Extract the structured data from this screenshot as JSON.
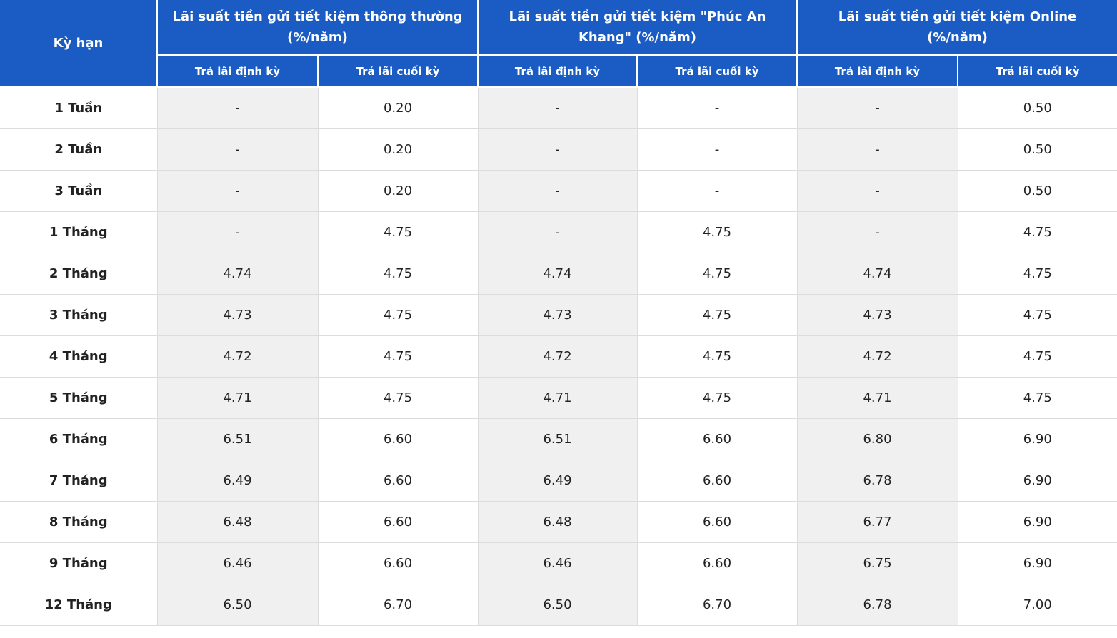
{
  "table": {
    "header": {
      "term": "Kỳ hạn",
      "groups": [
        {
          "title": "Lãi suất tiền gửi tiết kiệm thông thường (%/năm)",
          "subheaders": [
            "Trả lãi định kỳ",
            "Trả lãi cuối kỳ"
          ]
        },
        {
          "title": "Lãi suất tiền gửi tiết kiệm \"Phúc An Khang\" (%/năm)",
          "subheaders": [
            "Trả lãi định kỳ",
            "Trả lãi cuối kỳ"
          ]
        },
        {
          "title": "Lãi suất tiền gửi tiết kiệm Online (%/năm)",
          "subheaders": [
            "Trả lãi định kỳ",
            "Trả lãi cuối kỳ"
          ]
        }
      ]
    },
    "rows": [
      [
        "1 Tuần",
        "-",
        "0.20",
        "-",
        "-",
        "-",
        "0.50"
      ],
      [
        "2 Tuần",
        "-",
        "0.20",
        "-",
        "-",
        "-",
        "0.50"
      ],
      [
        "3 Tuần",
        "-",
        "0.20",
        "-",
        "-",
        "-",
        "0.50"
      ],
      [
        "1 Tháng",
        "-",
        "4.75",
        "-",
        "4.75",
        "-",
        "4.75"
      ],
      [
        "2 Tháng",
        "4.74",
        "4.75",
        "4.74",
        "4.75",
        "4.74",
        "4.75"
      ],
      [
        "3 Tháng",
        "4.73",
        "4.75",
        "4.73",
        "4.75",
        "4.73",
        "4.75"
      ],
      [
        "4 Tháng",
        "4.72",
        "4.75",
        "4.72",
        "4.75",
        "4.72",
        "4.75"
      ],
      [
        "5 Tháng",
        "4.71",
        "4.75",
        "4.71",
        "4.75",
        "4.71",
        "4.75"
      ],
      [
        "6 Tháng",
        "6.51",
        "6.60",
        "6.51",
        "6.60",
        "6.80",
        "6.90"
      ],
      [
        "7 Tháng",
        "6.49",
        "6.60",
        "6.49",
        "6.60",
        "6.78",
        "6.90"
      ],
      [
        "8 Tháng",
        "6.48",
        "6.60",
        "6.48",
        "6.60",
        "6.77",
        "6.90"
      ],
      [
        "9 Tháng",
        "6.46",
        "6.60",
        "6.46",
        "6.60",
        "6.75",
        "6.90"
      ],
      [
        "12 Tháng",
        "6.50",
        "6.70",
        "6.50",
        "6.70",
        "6.78",
        "7.00"
      ]
    ]
  }
}
